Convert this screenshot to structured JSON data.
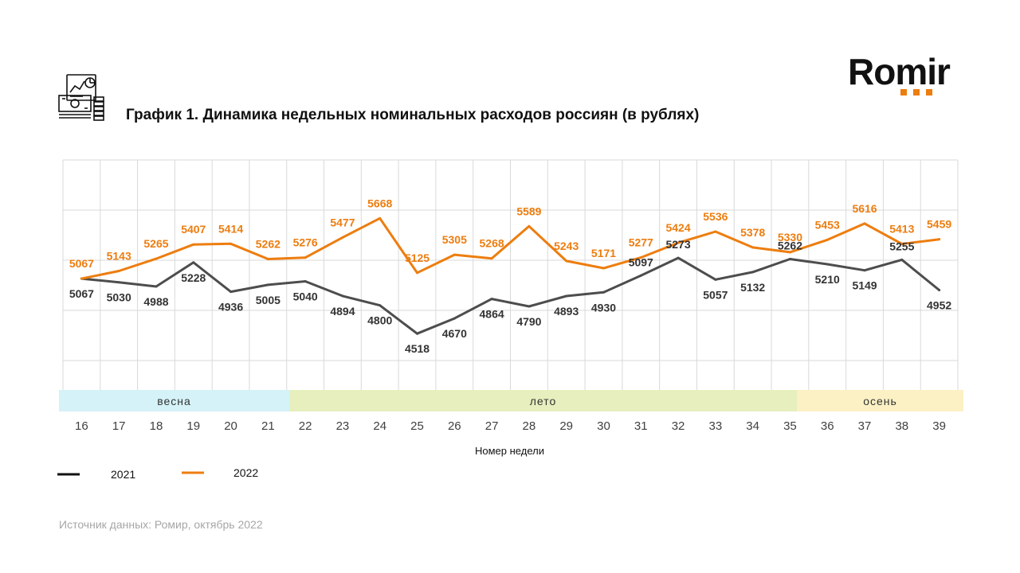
{
  "header": {
    "logo_text": "Romir",
    "title": "График 1. Динамика недельных номинальных расходов россиян (в рублях)"
  },
  "footer": {
    "source": "Источник данных: Ромир, октябрь 2022"
  },
  "chart_data": {
    "type": "line",
    "title": "График 1. Динамика недельных номинальных расходов россиян (в рублях)",
    "xlabel": "Номер недели",
    "ylabel": "",
    "x": [
      16,
      17,
      18,
      19,
      20,
      21,
      22,
      23,
      24,
      25,
      26,
      27,
      28,
      29,
      30,
      31,
      32,
      33,
      34,
      35,
      36,
      37,
      38,
      39
    ],
    "ylim": [
      4250,
      6250
    ],
    "grid": true,
    "legend_position": "bottom-left",
    "seasons": [
      {
        "name": "весна",
        "from": 16,
        "to": 21,
        "color": "#d4f2f7"
      },
      {
        "name": "лето",
        "from": 22,
        "to": 35,
        "color": "#e6efbd"
      },
      {
        "name": "осень",
        "from": 36,
        "to": 39,
        "color": "#fbf1c4"
      }
    ],
    "series": [
      {
        "name": "2021",
        "color": "#4d4d4d",
        "legend_color": "#111111",
        "values": [
          5067,
          5030,
          4988,
          5228,
          4936,
          5005,
          5040,
          4894,
          4800,
          4518,
          4670,
          4864,
          4790,
          4893,
          4930,
          5097,
          5273,
          5057,
          5132,
          5262,
          5210,
          5149,
          5255,
          4952
        ]
      },
      {
        "name": "2022",
        "color": "#ED7D0F",
        "legend_color": "#ED7D0F",
        "values": [
          5067,
          5143,
          5265,
          5407,
          5414,
          5262,
          5276,
          5477,
          5668,
          5125,
          5305,
          5268,
          5589,
          5243,
          5171,
          5277,
          5424,
          5536,
          5378,
          5330,
          5453,
          5616,
          5413,
          5459
        ]
      }
    ]
  }
}
